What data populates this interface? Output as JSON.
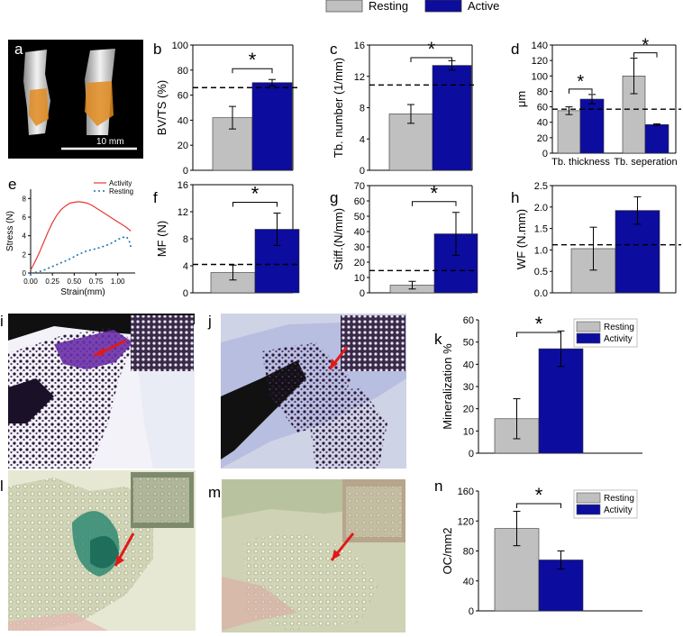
{
  "figure": {
    "top_legend": {
      "resting": "Resting",
      "active": "Active"
    },
    "colors": {
      "resting": "#c0c0c0",
      "active": "#0c0c9e",
      "activity_line": "#e53935",
      "resting_line": "#1f6fb0",
      "scalebar": "#ffffff"
    },
    "scale_bar_text": "10 mm"
  },
  "panel_letters": {
    "a": "a",
    "b": "b",
    "c": "c",
    "d": "d",
    "e": "e",
    "f": "f",
    "g": "g",
    "h": "h",
    "i": "i",
    "j": "j",
    "k": "k",
    "l": "l",
    "m": "m",
    "n": "n"
  },
  "chart_data": [
    {
      "id": "b",
      "type": "bar",
      "ylabel": "BV/TS (%)",
      "ylim": [
        0,
        100
      ],
      "yticks": [
        0,
        20,
        40,
        60,
        80,
        100
      ],
      "series": [
        {
          "name": "Resting",
          "values": [
            42
          ],
          "errors": [
            9
          ]
        },
        {
          "name": "Active",
          "values": [
            70
          ],
          "errors": [
            2.5
          ]
        }
      ],
      "reference_line": 66,
      "significance": "*"
    },
    {
      "id": "c",
      "type": "bar",
      "ylabel": "Tb. number (1/mm)",
      "ylim": [
        0,
        16
      ],
      "yticks": [
        0,
        4,
        8,
        12,
        16
      ],
      "series": [
        {
          "name": "Resting",
          "values": [
            7.2
          ],
          "errors": [
            1.2
          ]
        },
        {
          "name": "Active",
          "values": [
            13.4
          ],
          "errors": [
            0.6
          ]
        }
      ],
      "reference_line": 10.9,
      "significance": "*"
    },
    {
      "id": "d",
      "type": "bar",
      "ylabel": "μm",
      "ylim": [
        0,
        140
      ],
      "yticks": [
        0,
        20,
        40,
        60,
        80,
        100,
        120,
        140
      ],
      "categories": [
        "Tb. thickness",
        "Tb. seperation"
      ],
      "series": [
        {
          "name": "Resting",
          "values": [
            55,
            100
          ],
          "errors": [
            5,
            23
          ]
        },
        {
          "name": "Active",
          "values": [
            70,
            37
          ],
          "errors": [
            6,
            1
          ]
        }
      ],
      "reference_line": 57,
      "significance": [
        "*",
        "*"
      ]
    },
    {
      "id": "e",
      "type": "line",
      "xlabel": "Strain(mm)",
      "ylabel": "Stress (N)",
      "xlim": [
        0,
        1.2
      ],
      "ylim": [
        0,
        9
      ],
      "xticks": [
        "0.00",
        "0.25",
        "0.50",
        "0.75",
        "1.00"
      ],
      "yticks": [
        0,
        2,
        4,
        6,
        8
      ],
      "series": [
        {
          "name": "Activity",
          "x": [
            0,
            0.05,
            0.1,
            0.15,
            0.2,
            0.25,
            0.3,
            0.35,
            0.4,
            0.45,
            0.5,
            0.55,
            0.6,
            0.65,
            0.7,
            0.75,
            0.8,
            0.85,
            0.9,
            0.95,
            1.0,
            1.05,
            1.1,
            1.15
          ],
          "y": [
            0.3,
            1.2,
            2.2,
            3.3,
            4.4,
            5.4,
            6.2,
            6.8,
            7.2,
            7.5,
            7.6,
            7.65,
            7.6,
            7.5,
            7.3,
            7.0,
            6.7,
            6.4,
            6.1,
            5.8,
            5.5,
            5.2,
            4.9,
            4.5
          ]
        },
        {
          "name": "Resting",
          "x": [
            0,
            0.05,
            0.1,
            0.15,
            0.2,
            0.25,
            0.3,
            0.35,
            0.4,
            0.45,
            0.5,
            0.55,
            0.6,
            0.65,
            0.7,
            0.75,
            0.8,
            0.85,
            0.9,
            0.95,
            1.0,
            1.05,
            1.1,
            1.13,
            1.15
          ],
          "y": [
            0,
            0.05,
            0.15,
            0.3,
            0.5,
            0.7,
            0.9,
            1.1,
            1.3,
            1.5,
            1.75,
            2.0,
            2.2,
            2.4,
            2.5,
            2.6,
            2.75,
            2.9,
            3.1,
            3.3,
            3.6,
            3.8,
            3.9,
            3.5,
            2.8
          ]
        }
      ]
    },
    {
      "id": "f",
      "type": "bar",
      "ylabel": "MF (N)",
      "ylim": [
        0,
        16
      ],
      "yticks": [
        0,
        4,
        8,
        12,
        16
      ],
      "series": [
        {
          "name": "Resting",
          "values": [
            3.0
          ],
          "errors": [
            1.1
          ]
        },
        {
          "name": "Active",
          "values": [
            9.4
          ],
          "errors": [
            2.4
          ]
        }
      ],
      "reference_line": 4.2,
      "significance": "*"
    },
    {
      "id": "g",
      "type": "bar",
      "ylabel": "Stiff.(N/mm)",
      "ylim": [
        0,
        70
      ],
      "yticks": [
        0,
        10,
        20,
        30,
        40,
        50,
        60,
        70
      ],
      "series": [
        {
          "name": "Resting",
          "values": [
            5
          ],
          "errors": [
            2.5
          ]
        },
        {
          "name": "Active",
          "values": [
            38.5
          ],
          "errors": [
            14
          ]
        }
      ],
      "reference_line": 14.5,
      "significance": "*"
    },
    {
      "id": "h",
      "type": "bar",
      "ylabel": "WF (N.mm)",
      "ylim": [
        0,
        2.5
      ],
      "yticks": [
        "0.0",
        "0.5",
        "1.0",
        "1.5",
        "2.0",
        "2.5"
      ],
      "series": [
        {
          "name": "Resting",
          "values": [
            1.03
          ],
          "errors": [
            0.5
          ]
        },
        {
          "name": "Active",
          "values": [
            1.92
          ],
          "errors": [
            0.32
          ]
        }
      ],
      "reference_line": 1.12
    },
    {
      "id": "k",
      "type": "bar",
      "ylabel": "Mineralization %",
      "ylim": [
        0,
        60
      ],
      "yticks": [
        0,
        10,
        20,
        30,
        40,
        50,
        60
      ],
      "legend": [
        "Resting",
        "Activity"
      ],
      "series": [
        {
          "name": "Resting",
          "values": [
            15.5
          ],
          "errors": [
            9
          ]
        },
        {
          "name": "Activity",
          "values": [
            47
          ],
          "errors": [
            8
          ]
        }
      ],
      "significance": "*"
    },
    {
      "id": "n",
      "type": "bar",
      "ylabel": "OC/mm2",
      "ylim": [
        0,
        160
      ],
      "yticks": [
        0,
        40,
        80,
        120,
        160
      ],
      "legend": [
        "Resting",
        "Activity"
      ],
      "series": [
        {
          "name": "Resting",
          "values": [
            110
          ],
          "errors": [
            23
          ]
        },
        {
          "name": "Activity",
          "values": [
            68
          ],
          "errors": [
            12
          ]
        }
      ],
      "significance": "*"
    }
  ]
}
